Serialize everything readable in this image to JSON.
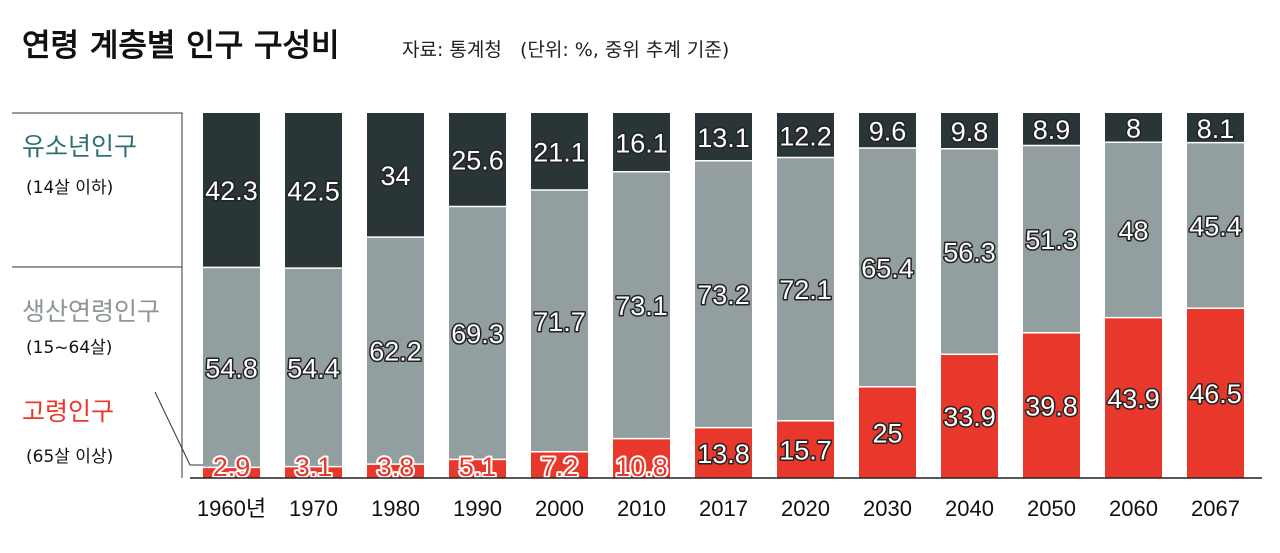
{
  "title": "연령 계층별 인구 구성비",
  "subtitle": "자료: 통계청   (단위: %, 중위 추계 기준)",
  "legend": [
    {
      "name": "유소년인구",
      "sub": "(14살 이하)"
    },
    {
      "name": "생산연령인구",
      "sub": "(15~64살)"
    },
    {
      "name": "고령인구",
      "sub": "(65살 이상)"
    }
  ],
  "colors": {
    "youth": "#293537",
    "working": "#939ea1",
    "elderly": "#e8382b",
    "youth_label": "#2f6f73",
    "working_label": "#8d9597",
    "elderly_label": "#e8382b"
  },
  "chart_data": {
    "type": "bar",
    "stacked": true,
    "categories": [
      "1960년",
      "1970",
      "1980",
      "1990",
      "2000",
      "2010",
      "2017",
      "2020",
      "2030",
      "2040",
      "2050",
      "2060",
      "2067"
    ],
    "series": [
      {
        "name": "고령인구",
        "values": [
          2.9,
          3.1,
          3.8,
          5.1,
          7.2,
          10.8,
          13.8,
          15.7,
          25,
          33.9,
          39.8,
          43.9,
          46.5
        ]
      },
      {
        "name": "생산연령인구",
        "values": [
          54.8,
          54.4,
          62.2,
          69.3,
          71.7,
          73.1,
          73.2,
          72.1,
          65.4,
          56.3,
          51.3,
          48,
          45.4
        ]
      },
      {
        "name": "유소년인구",
        "values": [
          42.3,
          42.5,
          34,
          25.6,
          21.1,
          16.1,
          13.1,
          12.2,
          9.6,
          9.8,
          8.9,
          8,
          8.1
        ]
      }
    ],
    "ylim": [
      0,
      100
    ],
    "grid": false,
    "legend_position": "left"
  }
}
